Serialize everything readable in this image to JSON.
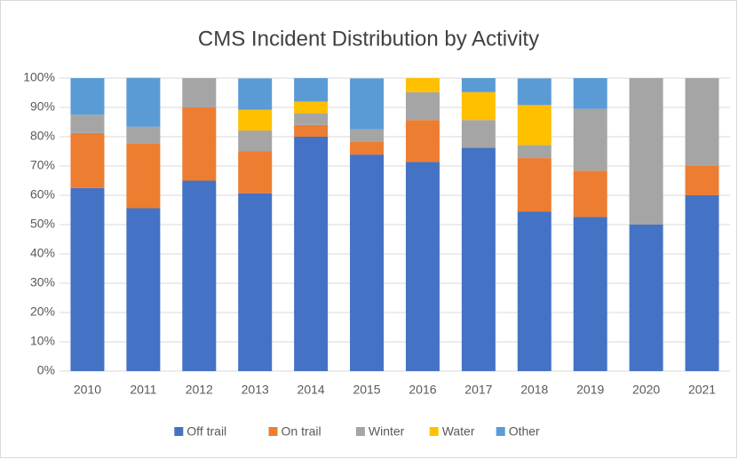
{
  "chart_data": {
    "type": "stacked_bar",
    "title": "CMS  Incident Distribution by Activity",
    "categories": [
      "2010",
      "2011",
      "2012",
      "2013",
      "2014",
      "2015",
      "2016",
      "2017",
      "2018",
      "2019",
      "2020",
      "2021"
    ],
    "series": [
      {
        "name": "Off trail",
        "color": "#4472c4",
        "values": [
          62.5,
          55.6,
          65,
          60.7,
          80,
          73.9,
          71.4,
          76.2,
          54.5,
          52.6,
          50,
          60
        ]
      },
      {
        "name": "On trail",
        "color": "#ed7d31",
        "values": [
          18.75,
          22.2,
          25,
          14.3,
          4,
          4.3,
          14.3,
          0,
          18.2,
          15.8,
          0,
          10
        ]
      },
      {
        "name": "Winter",
        "color": "#a5a5a5",
        "values": [
          6.25,
          5.6,
          10,
          7.1,
          4,
          4.3,
          9.5,
          9.5,
          4.5,
          21.1,
          50,
          30
        ]
      },
      {
        "name": "Water",
        "color": "#ffc000",
        "values": [
          0,
          0,
          0,
          7.1,
          4,
          0,
          4.8,
          9.5,
          13.6,
          0,
          0,
          0
        ]
      },
      {
        "name": "Other",
        "color": "#5b9bd5",
        "values": [
          12.5,
          16.7,
          0,
          10.7,
          8,
          17.4,
          0,
          4.8,
          9.1,
          10.5,
          0,
          0
        ]
      }
    ],
    "ylim": [
      0,
      100
    ],
    "yticks": [
      {
        "value": 0,
        "label": "0%"
      },
      {
        "value": 10,
        "label": "10%"
      },
      {
        "value": 20,
        "label": "20%"
      },
      {
        "value": 30,
        "label": "30%"
      },
      {
        "value": 40,
        "label": "40%"
      },
      {
        "value": 50,
        "label": "50%"
      },
      {
        "value": 60,
        "label": "60%"
      },
      {
        "value": 70,
        "label": "70%"
      },
      {
        "value": 80,
        "label": "80%"
      },
      {
        "value": 90,
        "label": "90%"
      },
      {
        "value": 100,
        "label": "100%"
      }
    ],
    "grid": true,
    "legend": "bottom"
  }
}
